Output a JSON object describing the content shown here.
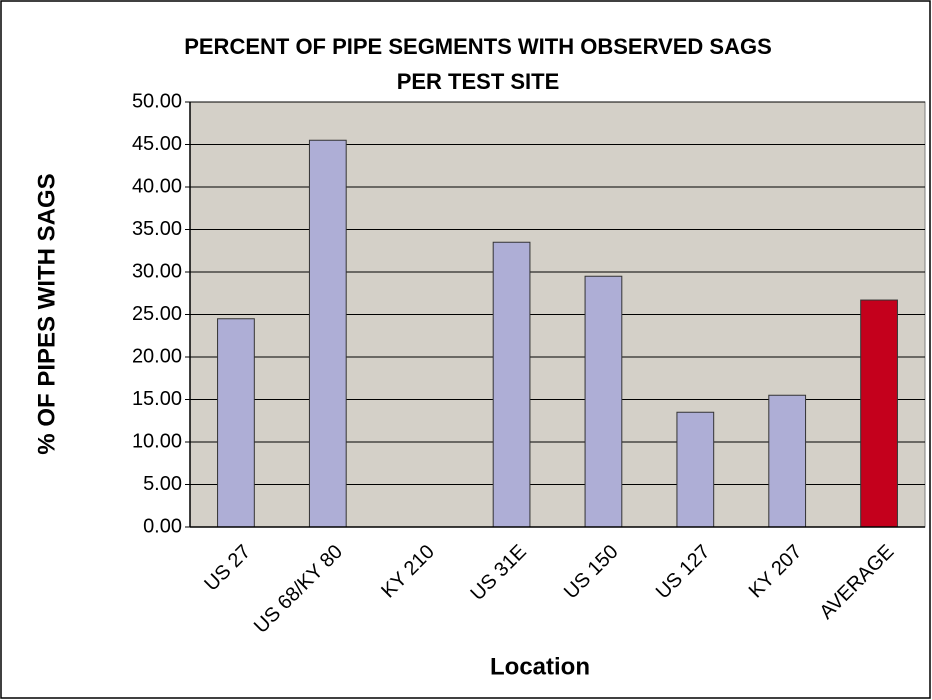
{
  "chart_data": {
    "type": "bar",
    "title": "PERCENT OF PIPE SEGMENTS WITH OBSERVED SAGS",
    "subtitle": "PER TEST SITE",
    "x_label": "Location",
    "y_label": "% OF PIPES WITH SAGS",
    "categories": [
      "US 27",
      "US 68/KY 80",
      "KY 210",
      "US 31E",
      "US 150",
      "US 127",
      "KY 207",
      "AVERAGE"
    ],
    "values": [
      24.5,
      45.5,
      0,
      33.5,
      29.5,
      13.5,
      15.5,
      26.7
    ],
    "colors": [
      "#aeaed6",
      "#aeaed6",
      "#aeaed6",
      "#aeaed6",
      "#aeaed6",
      "#aeaed6",
      "#aeaed6",
      "#c4001c"
    ],
    "ylim": [
      0,
      50
    ],
    "yticks": [
      {
        "value": 0,
        "label": "0.00"
      },
      {
        "value": 5,
        "label": "5.00"
      },
      {
        "value": 10,
        "label": "10.00"
      },
      {
        "value": 15,
        "label": "15.00"
      },
      {
        "value": 20,
        "label": "20.00"
      },
      {
        "value": 25,
        "label": "25.00"
      },
      {
        "value": 30,
        "label": "30.00"
      },
      {
        "value": 35,
        "label": "35.00"
      },
      {
        "value": 40,
        "label": "40.00"
      },
      {
        "value": 45,
        "label": "45.00"
      },
      {
        "value": 50,
        "label": "50.00"
      }
    ],
    "grid": true
  }
}
